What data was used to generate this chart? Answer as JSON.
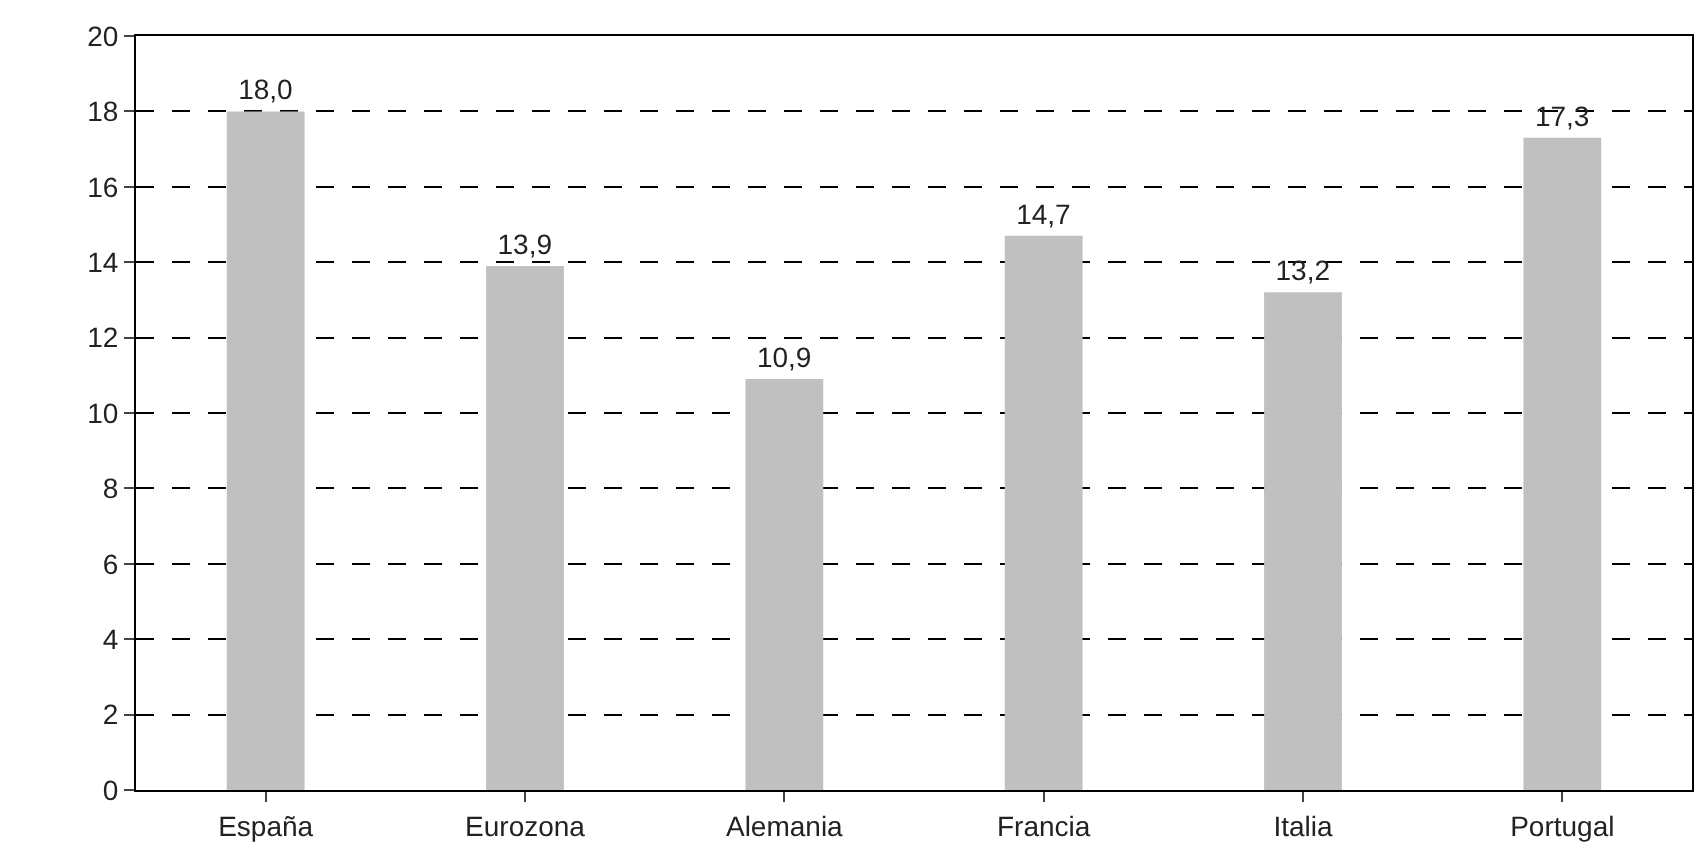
{
  "chart_data": {
    "type": "bar",
    "categories": [
      "España",
      "Eurozona",
      "Alemania",
      "Francia",
      "Italia",
      "Portugal"
    ],
    "values": [
      18.0,
      13.9,
      10.9,
      14.7,
      13.2,
      17.3
    ],
    "value_labels": [
      "18,0",
      "13,9",
      "10,9",
      "14,7",
      "13,2",
      "17,3"
    ],
    "color": "#c0c0c0",
    "ylim": [
      0,
      20
    ],
    "yticks": [
      0,
      2,
      4,
      6,
      8,
      10,
      12,
      14,
      16,
      18,
      20
    ],
    "grid": "y"
  }
}
